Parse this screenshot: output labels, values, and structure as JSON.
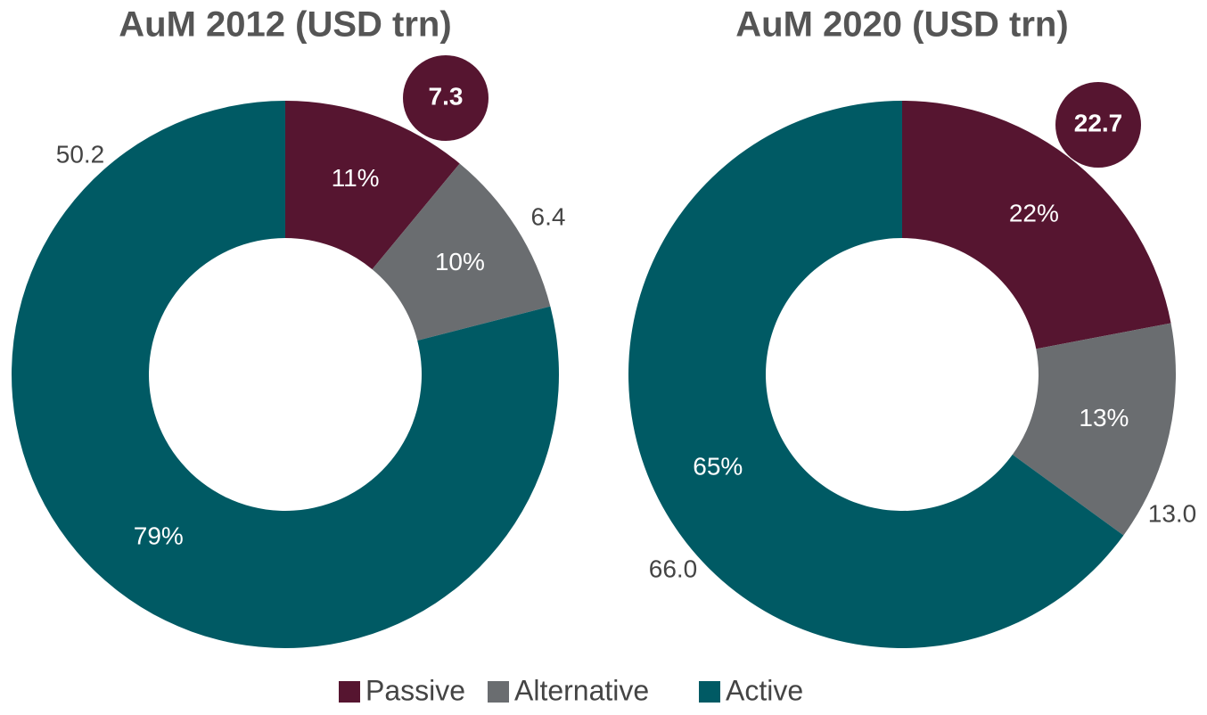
{
  "chart_data": [
    {
      "type": "donut",
      "title": "AuM 2012 (USD trn)",
      "categories": [
        "Passive",
        "Alternative",
        "Active"
      ],
      "values": [
        11,
        10,
        79
      ],
      "value_labels": [
        "11%",
        "10%",
        "79%"
      ],
      "amounts": [
        {
          "value": 7.3,
          "label": "7.3"
        },
        {
          "value": 6.4,
          "label": "6.4"
        },
        {
          "value": 50.2,
          "label": "50.2"
        }
      ],
      "colors": [
        "#561530",
        "#6a6d70",
        "#005a64"
      ]
    },
    {
      "type": "donut",
      "title": "AuM 2020 (USD trn)",
      "categories": [
        "Passive",
        "Alternative",
        "Active"
      ],
      "values": [
        22,
        13,
        65
      ],
      "value_labels": [
        "22%",
        "13%",
        "65%"
      ],
      "amounts": [
        {
          "value": 22.7,
          "label": "22.7"
        },
        {
          "value": 13.0,
          "label": "13.0"
        },
        {
          "value": 66.0,
          "label": "66.0"
        }
      ],
      "colors": [
        "#561530",
        "#6a6d70",
        "#005a64"
      ]
    }
  ]
}
